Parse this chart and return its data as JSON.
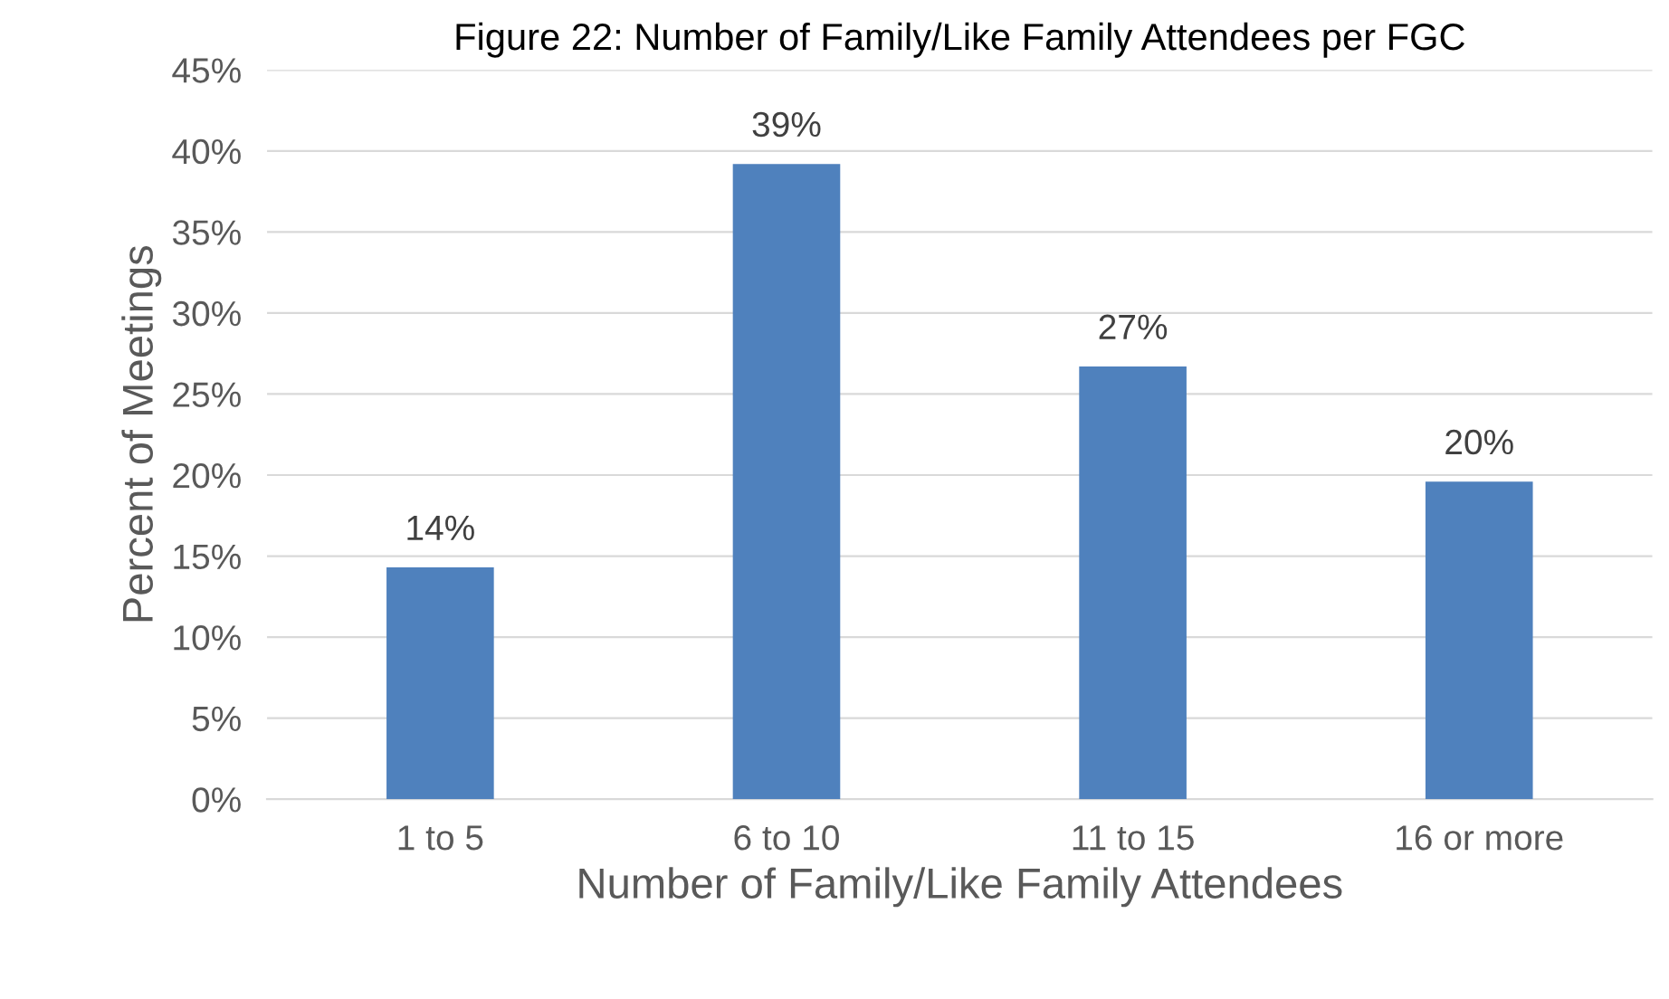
{
  "chart_data": {
    "type": "bar",
    "title": "Figure 22: Number of Family/Like Family Attendees per FGC",
    "xlabel": "Number of Family/Like Family Attendees",
    "ylabel": "Percent of Meetings",
    "categories": [
      "1 to 5",
      "6 to 10",
      "11 to 15",
      "16 or more"
    ],
    "values": [
      14.3,
      39.2,
      26.7,
      19.6
    ],
    "value_labels": [
      "14%",
      "39%",
      "27%",
      "20%"
    ],
    "color": "#4f81bd",
    "ylim": [
      0,
      45
    ],
    "yticks": [
      {
        "value": 0,
        "label": "0%"
      },
      {
        "value": 5,
        "label": "5%"
      },
      {
        "value": 10,
        "label": "10%"
      },
      {
        "value": 15,
        "label": "15%"
      },
      {
        "value": 20,
        "label": "20%"
      },
      {
        "value": 25,
        "label": "25%"
      },
      {
        "value": 30,
        "label": "30%"
      },
      {
        "value": 35,
        "label": "35%"
      },
      {
        "value": 40,
        "label": "40%"
      },
      {
        "value": 45,
        "label": "45%"
      }
    ],
    "grid": "y"
  }
}
